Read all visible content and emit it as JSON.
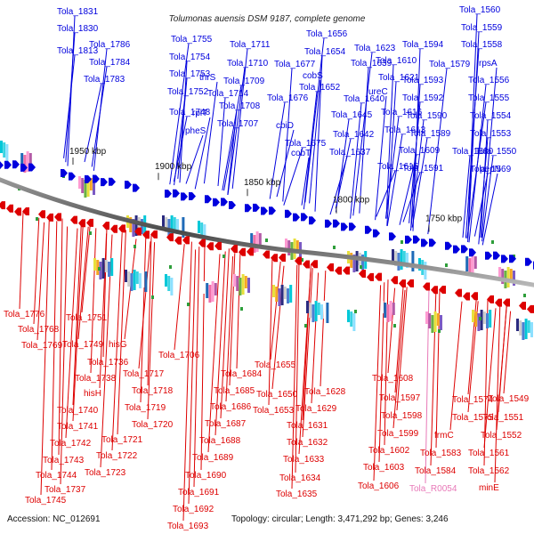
{
  "title": "Tolumonas auensis DSM 9187, complete genome",
  "accession": "Accession: NC_012691",
  "topology": "Topology: circular; Length: 3,471,292 bp; Genes: 3,246",
  "colors": {
    "forward": "#0000dd",
    "reverse": "#dd0000",
    "rna": "#e879b8",
    "backbone": "#6e6e6e"
  },
  "kbp_labels": [
    "1950 kbp",
    "1900 kbp",
    "1850 kbp",
    "1800 kbp",
    "1750 kbp"
  ],
  "forward_genes": [
    "Tola_1831",
    "Tola_1830",
    "Tola_1813",
    "Tola_1786",
    "Tola_1784",
    "Tola_1783",
    "Tola_1755",
    "Tola_1754",
    "Tola_1753",
    "Tola_1752",
    "Tola_1748",
    "Tola_1711",
    "Tola_1710",
    "Tola_1709",
    "Tola_1714",
    "Tola_1708",
    "Tola_1707",
    "thrS",
    "rplT",
    "pheS",
    "Tola_1656",
    "Tola_1654",
    "Tola_1677",
    "cobS",
    "Tola_1652",
    "Tola_1676",
    "cbiD",
    "Tola_1675",
    "cobT",
    "Tola_1639",
    "Tola_1640",
    "Tola_1645",
    "Tola_1642",
    "Tola_1637",
    "Tola_1623",
    "Tola_1610",
    "Tola_1621",
    "ureC",
    "Tola_1616",
    "Tola_1613",
    "Tola_1609",
    "Tola_1615",
    "Tola_1594",
    "Tola_1593",
    "Tola_1592",
    "Tola_1590",
    "Tola_1589",
    "Tola_1591",
    "Tola_1579",
    "Tola_1580",
    "Tola_1560",
    "Tola_1559",
    "Tola_1558",
    "rpsA",
    "Tola_1556",
    "Tola_1555",
    "Tola_1554",
    "Tola_1553",
    "Tola_1550",
    "Tola_1569",
    "pepN"
  ],
  "reverse_genes": [
    "Tola_1776",
    "Tola_1768",
    "Tola_1769",
    "Tola_1751",
    "Tola_1749",
    "hisG",
    "Tola_1736",
    "Tola_1738",
    "hisH",
    "Tola_1740",
    "Tola_1741",
    "Tola_1742",
    "Tola_1743",
    "Tola_1744",
    "Tola_1737",
    "Tola_1745",
    "Tola_1706",
    "Tola_1717",
    "Tola_1718",
    "Tola_1719",
    "Tola_1720",
    "Tola_1721",
    "Tola_1722",
    "Tola_1723",
    "Tola_1684",
    "Tola_1685",
    "Tola_1686",
    "Tola_1687",
    "Tola_1688",
    "Tola_1689",
    "Tola_1690",
    "Tola_1691",
    "Tola_1692",
    "Tola_1693",
    "Tola_1655",
    "Tola_1650",
    "Tola_1653",
    "Tola_1628",
    "Tola_1629",
    "Tola_1631",
    "Tola_1632",
    "Tola_1633",
    "Tola_1634",
    "Tola_1635",
    "Tola_1608",
    "Tola_1597",
    "Tola_1598",
    "Tola_1599",
    "Tola_1602",
    "Tola_1603",
    "Tola_1606",
    "Tola_1574",
    "Tola_1575",
    "frmC",
    "Tola_1583",
    "Tola_1584",
    "Tola_1549",
    "Tola_1551",
    "Tola_1552",
    "Tola_1561",
    "Tola_1562",
    "minE"
  ],
  "rna_genes": [
    "Tola_R0054"
  ]
}
